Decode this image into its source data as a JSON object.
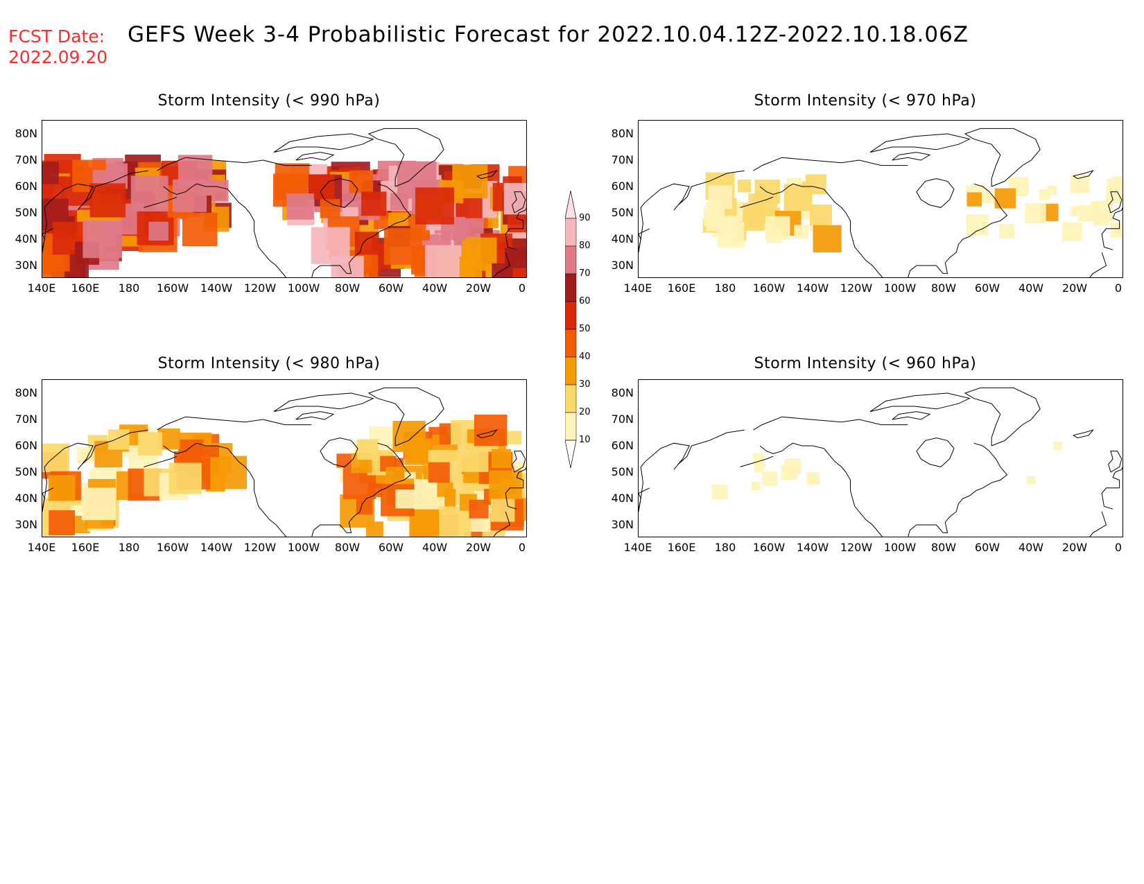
{
  "header": {
    "fcst_label": "FCST Date:",
    "fcst_date": "2022.09.20",
    "title": "GEFS Week 3-4 Probabilistic Forecast for 2022.10.04.12Z-2022.10.18.06Z"
  },
  "panels": [
    {
      "id": "p990",
      "title": "Storm Intensity (< 990 hPa)",
      "intensity": "high"
    },
    {
      "id": "p970",
      "title": "Storm Intensity (< 970 hPa)",
      "intensity": "low"
    },
    {
      "id": "p980",
      "title": "Storm Intensity (< 980 hPa)",
      "intensity": "medium"
    },
    {
      "id": "p960",
      "title": "Storm Intensity (< 960 hPa)",
      "intensity": "minimal"
    }
  ],
  "axes": {
    "lat_labels": [
      "80N",
      "70N",
      "60N",
      "50N",
      "40N",
      "30N"
    ],
    "lon_labels": [
      "140E",
      "160E",
      "180",
      "160W",
      "140W",
      "120W",
      "100W",
      "80W",
      "60W",
      "40W",
      "20W",
      "0"
    ]
  },
  "colorbar": {
    "levels": [
      "90",
      "80",
      "70",
      "60",
      "50",
      "40",
      "30",
      "20",
      "10"
    ],
    "colors": [
      "#f5b6bd",
      "#e07a88",
      "#a31c1c",
      "#d92a0a",
      "#f25c05",
      "#f59a05",
      "#fbd86a",
      "#fef3b8"
    ]
  }
}
